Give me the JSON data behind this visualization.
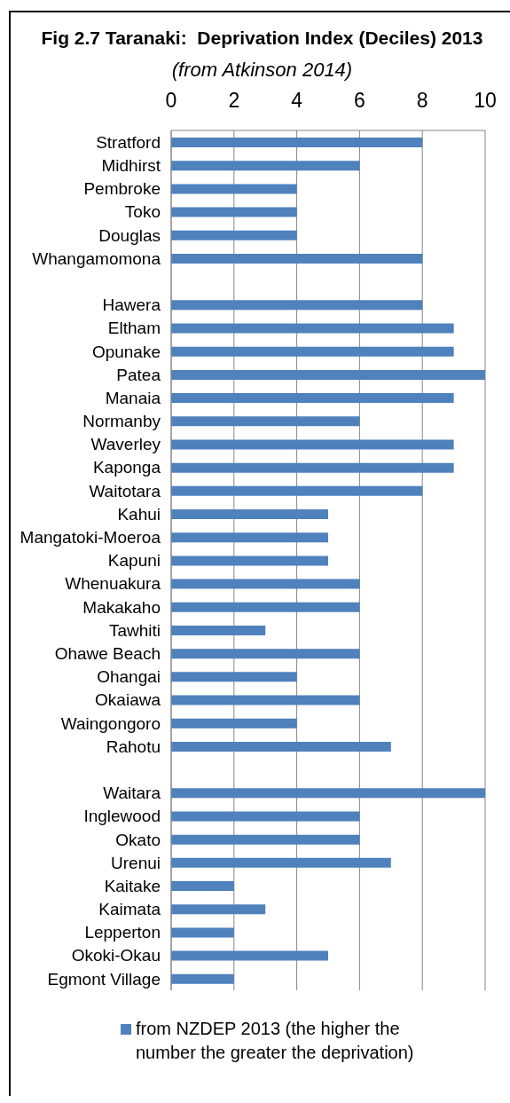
{
  "chart_data": {
    "type": "bar",
    "orientation": "horizontal",
    "title": "Fig 2.7 Taranaki:  Deprivation Index (Deciles) 2013",
    "subtitle": "(from Atkinson 2014)",
    "categories": [
      "Stratford",
      "Midhirst",
      "Pembroke",
      "Toko",
      "Douglas",
      "Whangamomona",
      null,
      "Hawera",
      "Eltham",
      "Opunake",
      "Patea",
      "Manaia",
      "Normanby",
      "Waverley",
      "Kaponga",
      "Waitotara",
      "Kahui",
      "Mangatoki-Moeroa",
      "Kapuni",
      "Whenuakura",
      "Makakaho",
      "Tawhiti",
      "Ohawe Beach",
      "Ohangai",
      "Okaiawa",
      "Waingongoro",
      "Rahotu",
      null,
      "Waitara",
      "Inglewood",
      "Okato",
      "Urenui",
      "Kaitake",
      "Kaimata",
      "Lepperton",
      "Okoki-Okau",
      "Egmont Village"
    ],
    "series": [
      {
        "name": "from NZDEP 2013 (the higher the number the greater the deprivation)",
        "color": "#4f81bd",
        "values": [
          8,
          6,
          4,
          4,
          4,
          8,
          null,
          8,
          9,
          9,
          10,
          9,
          6,
          9,
          9,
          8,
          5,
          5,
          5,
          6,
          6,
          3,
          6,
          4,
          6,
          4,
          7,
          null,
          10,
          6,
          6,
          7,
          2,
          3,
          2,
          5,
          2
        ]
      }
    ],
    "xlim": [
      0,
      10
    ],
    "xticks": [
      0,
      2,
      4,
      6,
      8,
      10
    ],
    "grid": "x",
    "legend": "bottom"
  }
}
